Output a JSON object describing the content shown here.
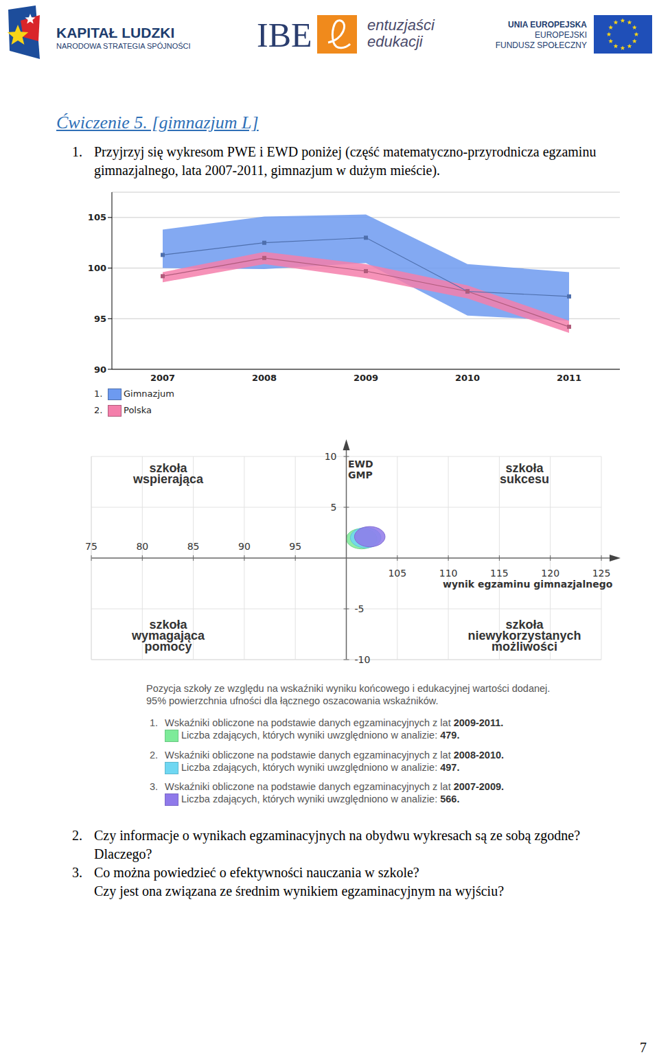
{
  "header": {
    "left_logo": [
      "KAPITAŁ LUDZKI",
      "NARODOWA STRATEGIA SPÓJNOŚCI"
    ],
    "center_logo": [
      "IBE",
      "entuzjaści",
      "edukacji"
    ],
    "right_logo": [
      "UNIA EUROPEJSKA",
      "EUROPEJSKI",
      "FUNDUSZ SPOŁECZNY"
    ]
  },
  "title": "Ćwiczenie 5. [gimnazjum L]",
  "questions": [
    {
      "number": "1.",
      "lines": [
        "Przyjrzyj się wykresom PWE i EWD poniżej (część matematyczno-przyrodnicza egzaminu gimnazjalnego, lata 2007-2011, gimnazjum w dużym mieście)."
      ]
    },
    {
      "number": "2.",
      "lines": [
        "Czy informacje o wynikach egzaminacyjnych na obydwu wykresach są ze sobą zgodne? Dlaczego?"
      ]
    },
    {
      "number": "3.",
      "lines": [
        "Co można powiedzieć o efektywności nauczania w szkole?",
        "Czy jest ona związana ze średnim wynikiem egzaminacyjnym na wyjściu?"
      ]
    }
  ],
  "chart_data": [
    {
      "type": "line",
      "categories": [
        "2007",
        "2008",
        "2009",
        "2010",
        "2011"
      ],
      "ylim": [
        90,
        107.5
      ],
      "yticks": [
        90,
        95,
        100,
        105
      ],
      "grid": true,
      "marker": "square",
      "series": [
        {
          "number": "1.",
          "name": "Gimnazjum",
          "color": "#6d9af0",
          "values": [
            101.3,
            102.5,
            103.0,
            97.7,
            97.2
          ],
          "lower": [
            100.0,
            99.9,
            100.5,
            95.3,
            94.8
          ],
          "upper": [
            103.8,
            105.1,
            105.3,
            100.4,
            99.6
          ]
        },
        {
          "number": "2.",
          "name": "Polska",
          "color": "#f47fab",
          "values": [
            99.2,
            101.0,
            99.7,
            97.7,
            94.2
          ],
          "lower": [
            98.6,
            100.4,
            99.0,
            97.0,
            93.6
          ],
          "upper": [
            99.6,
            101.6,
            100.4,
            98.3,
            94.8
          ]
        }
      ]
    },
    {
      "type": "scatter",
      "x_label": "wynik egzaminu gimnazjalnego",
      "y_label": "EWD GMP",
      "xlim": [
        75,
        125
      ],
      "xticks": [
        75,
        80,
        85,
        90,
        95,
        105,
        110,
        115,
        120,
        125
      ],
      "ylim": [
        -10,
        10
      ],
      "yticks": [
        10,
        5,
        -5,
        -10
      ],
      "grid": true,
      "quadrants": {
        "top_left": [
          "szkoła",
          "wspierająca"
        ],
        "top_right": [
          "szkoła",
          "sukcesu"
        ],
        "bottom_left": [
          "szkoła",
          "wymagająca",
          "pomocy"
        ],
        "bottom_right": [
          "szkoła",
          "niewykorzystanych",
          "możliwości"
        ]
      },
      "note": [
        "Pozycja szkoły ze względu na wskaźniki wyniku końcowego i edukacyjnej wartości dodanej.",
        "95% powierzchnia ufności dla łącznego oszacowania wskaźników."
      ],
      "legend_prefix": "Wskaźniki obliczone na podstawie danych egzaminacyjnych z lat",
      "legend_count_label": "Liczba zdających, których wyniki uwzględniono w analizie:",
      "legend_end": ".",
      "series": [
        {
          "number": "1.",
          "name": "2009-2011",
          "color": "#7deb99",
          "x": 101.5,
          "y": 1.9,
          "x_halfwidth": 1.5,
          "y_halfwidth": 1.0,
          "count": 479
        },
        {
          "number": "2.",
          "name": "2008-2010",
          "color": "#6fd7f2",
          "x": 101.9,
          "y": 2.0,
          "x_halfwidth": 1.5,
          "y_halfwidth": 1.0,
          "count": 497
        },
        {
          "number": "3.",
          "name": "2007-2009",
          "color": "#8f79ea",
          "x": 102.3,
          "y": 2.1,
          "x_halfwidth": 1.5,
          "y_halfwidth": 1.0,
          "count": 566
        }
      ]
    }
  ],
  "page_number": "7"
}
